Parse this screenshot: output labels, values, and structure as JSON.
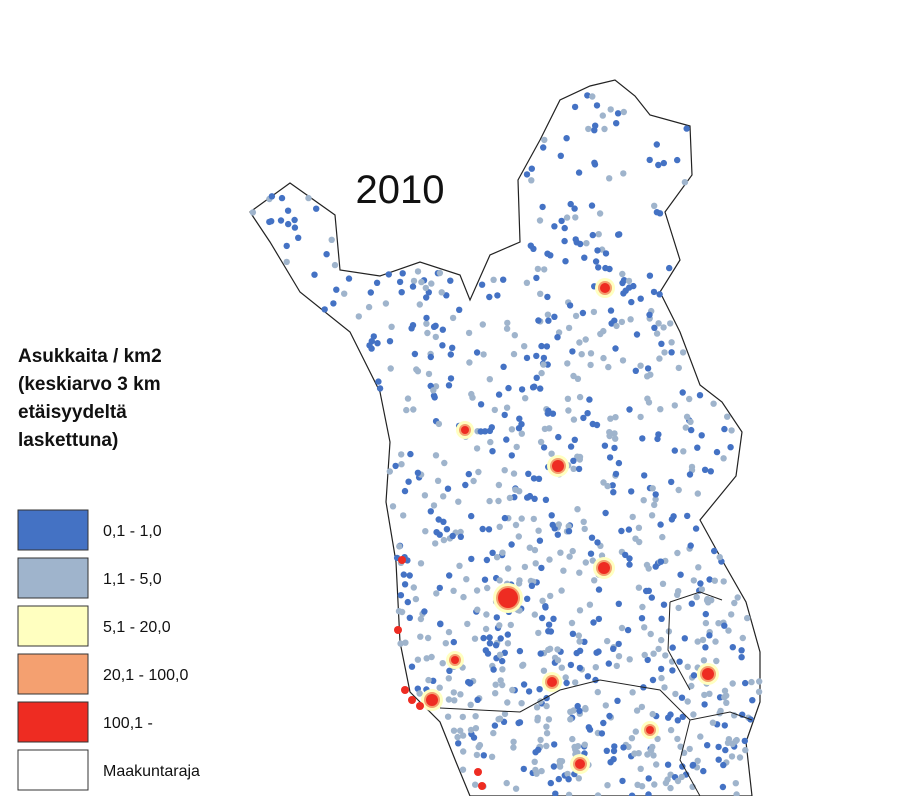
{
  "map": {
    "year": "2010",
    "legend": {
      "title_lines": [
        "Asukkaita / km2",
        "(keskiarvo 3 km",
        "etäisyydeltä",
        "laskettuna)"
      ],
      "items": [
        {
          "label": "0,1 - 1,0",
          "color": "#4472c4"
        },
        {
          "label": "1,1 - 5,0",
          "color": "#9fb4cc"
        },
        {
          "label": "5,1 - 20,0",
          "color": "#ffffc0"
        },
        {
          "label": "20,1 - 100,0",
          "color": "#f4a070"
        },
        {
          "label": "100,1 -",
          "color": "#ee2c22"
        },
        {
          "label": "Maakuntaraja",
          "color": "#ffffff"
        }
      ]
    }
  }
}
